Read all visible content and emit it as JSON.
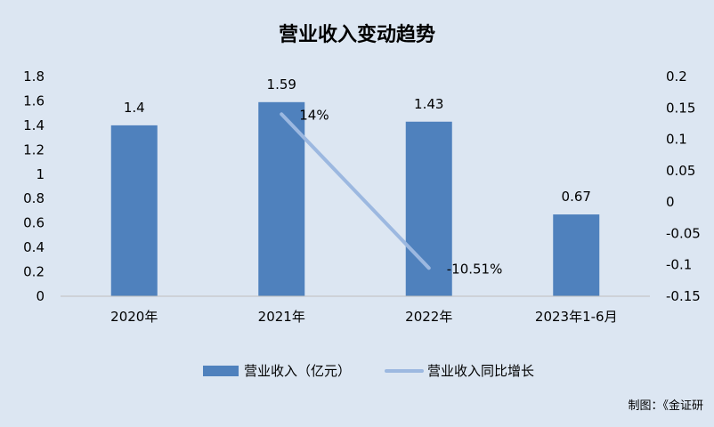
{
  "chart_data": {
    "type": "bar",
    "title": "营业收入变动趋势",
    "categories": [
      "2020年",
      "2021年",
      "2022年",
      "2023年1-6月"
    ],
    "series": [
      {
        "name": "营业收入（亿元）",
        "type": "bar",
        "axis": "left",
        "values": [
          1.4,
          1.59,
          1.43,
          0.67
        ],
        "labels": [
          "1.4",
          "1.59",
          "1.43",
          "0.67"
        ]
      },
      {
        "name": "营业收入同比增长",
        "type": "line",
        "axis": "right",
        "values": [
          null,
          0.14,
          -0.1051,
          null
        ],
        "labels": [
          "",
          "14%",
          "-10.51%",
          ""
        ]
      }
    ],
    "y_left": {
      "ylim": [
        0,
        1.8
      ],
      "ticks": [
        0,
        0.2,
        0.4,
        0.6,
        0.8,
        1,
        1.2,
        1.4,
        1.6,
        1.8
      ],
      "tick_labels": [
        "0",
        "0.2",
        "0.4",
        "0.6",
        "0.8",
        "1",
        "1.2",
        "1.4",
        "1.6",
        "1.8"
      ]
    },
    "y_right": {
      "ylim": [
        -0.15,
        0.2
      ],
      "ticks": [
        -0.15,
        -0.1,
        -0.05,
        0,
        0.05,
        0.1,
        0.15,
        0.2
      ],
      "tick_labels": [
        "-0.15",
        "-0.1",
        "-0.05",
        "0",
        "0.05",
        "0.1",
        "0.15",
        "0.2"
      ]
    },
    "grid": false,
    "legend": "bottom",
    "source_note": "制图：《金证研",
    "colors": {
      "bar": "#4f81bd",
      "line": "#9cb8e0",
      "background": "#dce6f2",
      "text": "#000000"
    }
  }
}
